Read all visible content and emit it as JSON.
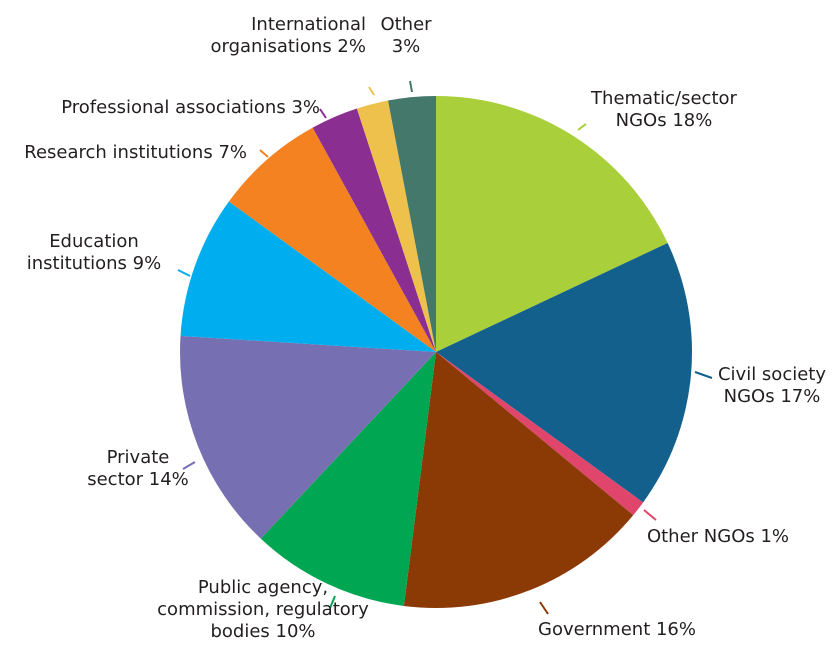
{
  "chart_data": {
    "type": "pie",
    "title": "",
    "start_angle_deg": 0,
    "direction": "clockwise",
    "slices": [
      {
        "lines": [
          "Thematic/sector",
          "NGOs 18%"
        ],
        "value": 18,
        "color": "#a9cf3a"
      },
      {
        "lines": [
          "Civil society",
          "NGOs 17%"
        ],
        "value": 17,
        "color": "#13608d"
      },
      {
        "lines": [
          "Other NGOs 1%"
        ],
        "value": 1,
        "color": "#e0456b"
      },
      {
        "lines": [
          "Government 16%"
        ],
        "value": 16,
        "color": "#8b3a06"
      },
      {
        "lines": [
          "Public agency,",
          "commission, regulatory",
          "bodies 10%"
        ],
        "value": 10,
        "color": "#00a651"
      },
      {
        "lines": [
          "Private",
          "sector 14%"
        ],
        "value": 14,
        "color": "#7670b2"
      },
      {
        "lines": [
          "Education",
          "institutions 9%"
        ],
        "value": 9,
        "color": "#00aeef"
      },
      {
        "lines": [
          "Research institutions 7%"
        ],
        "value": 7,
        "color": "#f58220"
      },
      {
        "lines": [
          "Professional associations 3%"
        ],
        "value": 3,
        "color": "#8a2e91"
      },
      {
        "lines": [
          "International",
          "organisations 2%"
        ],
        "value": 2,
        "color": "#edc14b"
      },
      {
        "lines": [
          "Other",
          "3%"
        ],
        "value": 3,
        "color": "#44786a"
      }
    ]
  }
}
